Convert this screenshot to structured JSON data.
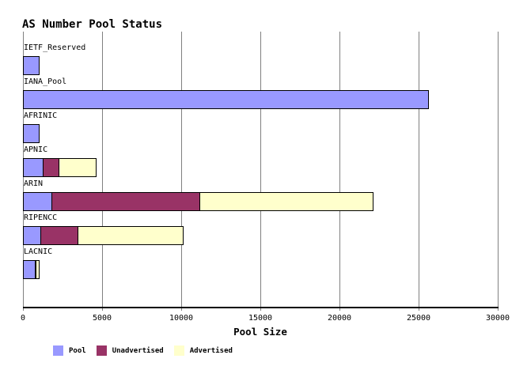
{
  "chart_data": {
    "type": "bar",
    "orientation": "horizontal-stacked",
    "title": "AS Number Pool Status",
    "xlabel": "Pool Size",
    "xlim": [
      0,
      30000
    ],
    "xticks": [
      0,
      5000,
      10000,
      15000,
      20000,
      25000,
      30000
    ],
    "grid": "vertical-gray-lines",
    "legend_position": "bottom",
    "categories": [
      "IETF_Reserved",
      "IANA_Pool",
      "AFRINIC",
      "APNIC",
      "ARIN",
      "RIPENCC",
      "LACNIC"
    ],
    "series": [
      {
        "name": "Pool",
        "color": "#9999ff",
        "values": [
          1000,
          25600,
          1000,
          1250,
          1800,
          1100,
          750
        ]
      },
      {
        "name": "Unadvertised",
        "color": "#993366",
        "values": [
          0,
          0,
          0,
          1000,
          9350,
          2350,
          50
        ]
      },
      {
        "name": "Advertised",
        "color": "#ffffcc",
        "values": [
          0,
          0,
          0,
          2350,
          10950,
          6650,
          200
        ]
      }
    ],
    "totals": [
      1000,
      25600,
      1000,
      4600,
      22100,
      10100,
      1000
    ],
    "legend": [
      "Pool",
      "Unadvertised",
      "Advertised"
    ],
    "colors": {
      "pool": "#9999ff",
      "unadvertised": "#993366",
      "advertised": "#ffffcc",
      "gridline": "#808080",
      "axis": "#000000",
      "bar_border": "#000000",
      "text": "#000000",
      "background": "#ffffff"
    }
  }
}
